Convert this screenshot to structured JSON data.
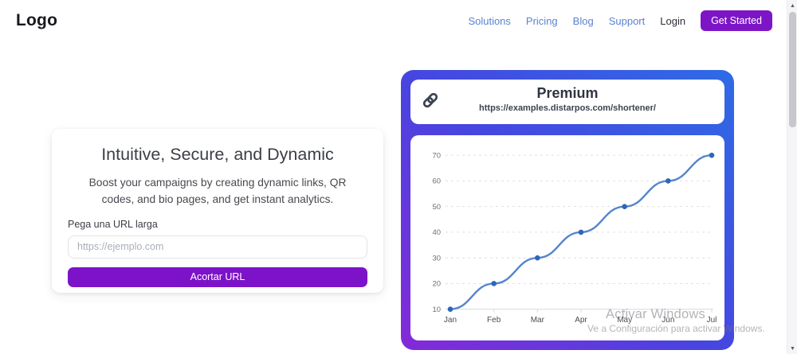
{
  "header": {
    "logo": "Logo",
    "nav_links": [
      "Solutions",
      "Pricing",
      "Blog",
      "Support"
    ],
    "login_label": "Login",
    "get_started_label": "Get Started"
  },
  "shortener": {
    "heading": "Intuitive, Secure, and Dynamic",
    "description": "Boost your campaigns by creating dynamic links, QR codes, and bio pages, and get instant analytics.",
    "url_label": "Pega una URL larga",
    "url_placeholder": "https://ejemplo.com",
    "submit_label": "Acortar URL"
  },
  "premium_card": {
    "title": "Premium",
    "url": "https://examples.distarpos.com/shortener/",
    "icon": "link-icon"
  },
  "chart_data": {
    "type": "line",
    "x": [
      "Jan",
      "Feb",
      "Mar",
      "Apr",
      "May",
      "Jun",
      "Jul"
    ],
    "series": [
      {
        "values": [
          10,
          20,
          30,
          40,
          50,
          60,
          70
        ]
      }
    ],
    "title": "",
    "xlabel": "",
    "ylabel": "",
    "yticks": [
      10,
      20,
      30,
      40,
      50,
      60,
      70
    ],
    "ylim": [
      10,
      75
    ],
    "grid": "horizontal-dashed",
    "legend": "none",
    "line_color": "#5585cc",
    "point_color": "#2e66b8",
    "grid_color": "#e1e1e4",
    "axis_color": "#d9d9dc",
    "tick_label_color": "#6e6e72",
    "x_label_color": "#4a4c52"
  },
  "watermark": {
    "line1": "Activar Windows",
    "line2": "Ve a Configuración para activar Windows."
  },
  "colors": {
    "brand_purple": "#7d13c9",
    "nav_link_blue": "#5b82cf",
    "card_gradient_blue": "#2e6be5",
    "card_gradient_purple": "#8529d8"
  }
}
